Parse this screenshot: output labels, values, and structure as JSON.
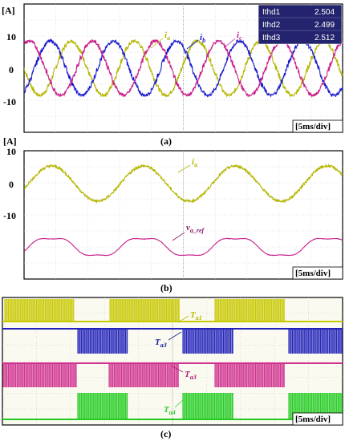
{
  "chart_data": [
    {
      "panel": "(a)",
      "type": "line",
      "ylabel": "[A]",
      "yticks": [
        "10",
        "0",
        "-10"
      ],
      "ylim": [
        -13,
        13
      ],
      "time_division": "[5ms/div]",
      "grid": true,
      "series": [
        {
          "name": "ia",
          "label_main": "i",
          "label_sub": "a",
          "color": "#b5b500",
          "amplitude": 5.5,
          "phase_deg": 180,
          "period_div": 2
        },
        {
          "name": "ib",
          "label_main": "i",
          "label_sub": "b",
          "color": "#1a1acc",
          "amplitude": 5.5,
          "phase_deg": 300,
          "period_div": 2
        },
        {
          "name": "ic",
          "label_main": "i",
          "label_sub": "c",
          "color": "#c8208a",
          "amplitude": 5.5,
          "phase_deg": 60,
          "period_div": 2
        }
      ],
      "thd_box": [
        {
          "name": "Ithd1",
          "value": "2.504"
        },
        {
          "name": "Ithd2",
          "value": "2.499"
        },
        {
          "name": "Ithd3",
          "value": "2.512"
        }
      ]
    },
    {
      "panel": "(b)",
      "type": "line",
      "ylabel": "[A]",
      "yticks": [
        "10",
        "0",
        "-10"
      ],
      "time_division": "[5ms/div]",
      "grid": true,
      "series": [
        {
          "name": "ia",
          "label_main": "i",
          "label_sub": "a",
          "color": "#b5b500",
          "amplitude": 5.5,
          "period_div": 2.8
        },
        {
          "name": "va_ref",
          "label_main": "v",
          "label_sub": "a_ref",
          "color": "#c8208a",
          "shape": "flat-topped sinusoid",
          "period_div": 2.8
        }
      ]
    },
    {
      "panel": "(c)",
      "type": "line",
      "time_division": "[5ms/div]",
      "grid": true,
      "background": "#fafaf0",
      "series": [
        {
          "name": "Ta1",
          "label_main": "T",
          "label_sub": "a1",
          "color": "#c8c800",
          "pattern": "switching bursts"
        },
        {
          "name": "Ta3",
          "label_main": "T",
          "label_sub": "a3",
          "color": "#2222bb",
          "pattern": "switching bursts"
        },
        {
          "name": "Ta3_2",
          "label_main": "T",
          "label_sub": "a3",
          "color": "#d0308f",
          "pattern": "switching bursts"
        },
        {
          "name": "Ta4",
          "label_main": "T",
          "label_sub": "a4",
          "color": "#22cc22",
          "pattern": "switching bursts"
        }
      ]
    }
  ],
  "captions": {
    "a": "(a)",
    "b": "(b)",
    "c": "(c)"
  }
}
